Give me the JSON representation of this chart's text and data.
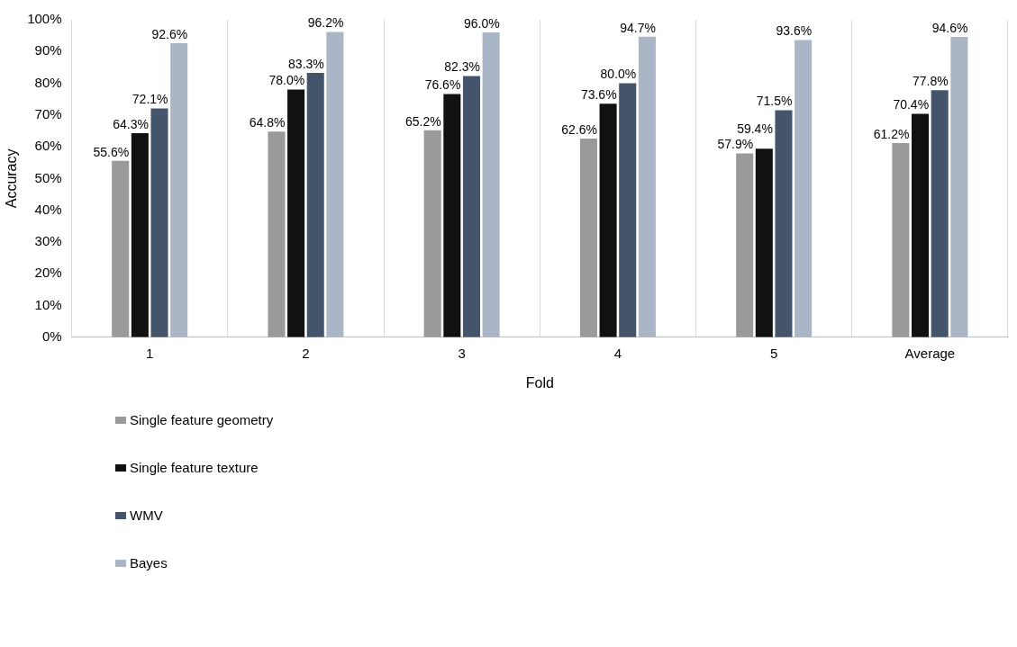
{
  "chart_data": {
    "type": "bar",
    "xlabel": "Fold",
    "ylabel": "Accuracy",
    "categories": [
      "1",
      "2",
      "3",
      "4",
      "5",
      "Average"
    ],
    "series": [
      {
        "name": "Single feature geometry",
        "color": "#9a9a9a",
        "values": [
          55.6,
          64.8,
          65.2,
          62.6,
          57.9,
          61.2
        ],
        "value_labels": [
          "55.6%",
          "64.8%",
          "65.2%",
          "62.6%",
          "57.9%",
          "61.2%"
        ]
      },
      {
        "name": "Single feature texture",
        "color": "#111111",
        "values": [
          64.3,
          78.0,
          76.6,
          73.6,
          59.4,
          70.4
        ],
        "value_labels": [
          "64.3%",
          "78.0%",
          "76.6%",
          "73.6%",
          "59.4%",
          "70.4%"
        ]
      },
      {
        "name": "WMV",
        "color": "#44546a",
        "values": [
          72.1,
          83.3,
          82.3,
          80.0,
          71.5,
          77.8
        ],
        "value_labels": [
          "72.1%",
          "83.3%",
          "82.3%",
          "80.0%",
          "71.5%",
          "77.8%"
        ]
      },
      {
        "name": "Bayes",
        "color": "#aab6c6",
        "values": [
          92.6,
          96.2,
          96.0,
          94.7,
          93.6,
          94.6
        ],
        "value_labels": [
          "92.6%",
          "96.2%",
          "96.0%",
          "94.7%",
          "93.6%",
          "94.6%"
        ]
      }
    ],
    "ylim": [
      0,
      100
    ],
    "yticks": [
      {
        "value": 0,
        "label": "0%"
      },
      {
        "value": 10,
        "label": "10%"
      },
      {
        "value": 20,
        "label": "20%"
      },
      {
        "value": 30,
        "label": "30%"
      },
      {
        "value": 40,
        "label": "40%"
      },
      {
        "value": 50,
        "label": "50%"
      },
      {
        "value": 60,
        "label": "60%"
      },
      {
        "value": 70,
        "label": "70%"
      },
      {
        "value": 80,
        "label": "80%"
      },
      {
        "value": 90,
        "label": "90%"
      },
      {
        "value": 100,
        "label": "100%"
      }
    ],
    "grid": "x",
    "legend": "bottom"
  }
}
